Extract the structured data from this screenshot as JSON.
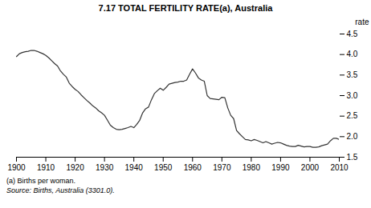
{
  "chart_data": {
    "type": "line",
    "title": "7.17   TOTAL FERTILITY RATE(a), Australia",
    "ylabel": "rate",
    "annotations": [
      "(a) Births per woman.",
      "Source: Births, Australia (3301.0)."
    ],
    "color": "#333333",
    "grid": false,
    "xlim": [
      1900,
      2010
    ],
    "ylim": [
      1.5,
      4.5
    ],
    "xticks": [
      1900,
      1910,
      1920,
      1930,
      1940,
      1950,
      1960,
      1970,
      1980,
      1990,
      2000,
      2010
    ],
    "yticks": [
      1.5,
      {
        "value": 2,
        "label": "2.0"
      },
      2.5,
      {
        "value": 3,
        "label": "3.0"
      },
      3.5,
      {
        "value": 4,
        "label": "4.0"
      },
      4.5
    ],
    "x": [
      1900,
      1901,
      1902,
      1903,
      1904,
      1905,
      1906,
      1907,
      1908,
      1909,
      1910,
      1911,
      1912,
      1913,
      1914,
      1915,
      1916,
      1917,
      1918,
      1919,
      1920,
      1921,
      1922,
      1923,
      1924,
      1925,
      1926,
      1927,
      1928,
      1929,
      1930,
      1931,
      1932,
      1933,
      1934,
      1935,
      1936,
      1937,
      1938,
      1939,
      1940,
      1941,
      1942,
      1943,
      1944,
      1945,
      1946,
      1947,
      1948,
      1949,
      1950,
      1951,
      1952,
      1953,
      1954,
      1955,
      1956,
      1957,
      1958,
      1959,
      1960,
      1961,
      1962,
      1963,
      1964,
      1965,
      1966,
      1967,
      1968,
      1969,
      1970,
      1971,
      1972,
      1973,
      1974,
      1975,
      1976,
      1977,
      1978,
      1979,
      1980,
      1981,
      1982,
      1983,
      1984,
      1985,
      1986,
      1987,
      1988,
      1989,
      1990,
      1991,
      1992,
      1993,
      1994,
      1995,
      1996,
      1997,
      1998,
      1999,
      2000,
      2001,
      2002,
      2003,
      2004,
      2005,
      2006,
      2007,
      2008,
      2009,
      2010
    ],
    "values": [
      3.95,
      4.02,
      4.05,
      4.07,
      4.08,
      4.1,
      4.1,
      4.08,
      4.05,
      4.02,
      3.98,
      3.92,
      3.85,
      3.78,
      3.72,
      3.6,
      3.52,
      3.45,
      3.3,
      3.22,
      3.15,
      3.1,
      3.02,
      2.95,
      2.88,
      2.82,
      2.75,
      2.7,
      2.63,
      2.58,
      2.52,
      2.4,
      2.28,
      2.22,
      2.18,
      2.17,
      2.18,
      2.2,
      2.22,
      2.25,
      2.22,
      2.3,
      2.4,
      2.58,
      2.68,
      2.72,
      2.9,
      3.05,
      3.12,
      3.18,
      3.13,
      3.2,
      3.28,
      3.3,
      3.32,
      3.33,
      3.35,
      3.35,
      3.38,
      3.52,
      3.65,
      3.55,
      3.43,
      3.38,
      3.35,
      3.0,
      2.93,
      2.92,
      2.91,
      2.9,
      2.96,
      2.95,
      2.7,
      2.52,
      2.44,
      2.15,
      2.07,
      2.0,
      1.93,
      1.92,
      1.9,
      1.93,
      1.91,
      1.88,
      1.85,
      1.88,
      1.85,
      1.82,
      1.84,
      1.86,
      1.85,
      1.82,
      1.79,
      1.77,
      1.76,
      1.76,
      1.79,
      1.77,
      1.75,
      1.76,
      1.76,
      1.74,
      1.74,
      1.75,
      1.78,
      1.8,
      1.82,
      1.9,
      1.96,
      1.96,
      1.93
    ]
  }
}
